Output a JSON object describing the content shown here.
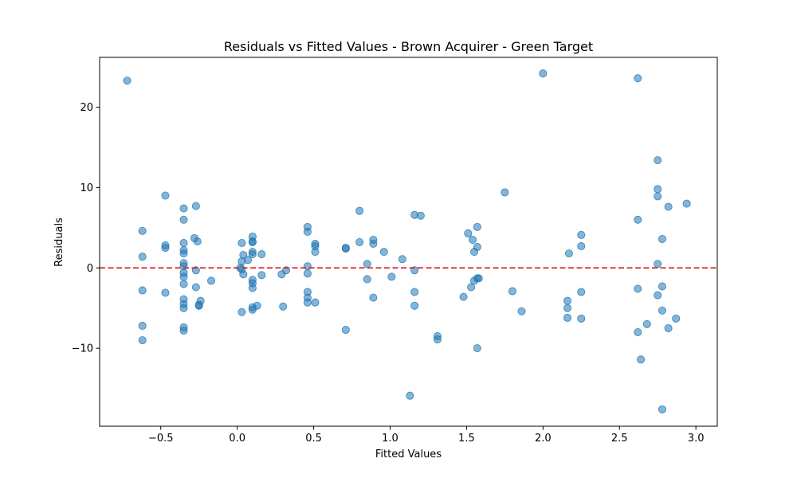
{
  "chart_data": {
    "type": "scatter",
    "title": "Residuals vs Fitted Values - Brown Acquirer - Green Target",
    "xlabel": "Fitted Values",
    "ylabel": "Residuals",
    "xlim": [
      -0.9,
      3.14
    ],
    "ylim": [
      -19.7,
      26.2
    ],
    "xticks": [
      -0.5,
      0.0,
      0.5,
      1.0,
      1.5,
      2.0,
      2.5,
      3.0
    ],
    "xtick_labels": [
      "−0.5",
      "0.0",
      "0.5",
      "1.0",
      "1.5",
      "2.0",
      "2.5",
      "3.0"
    ],
    "yticks": [
      -10,
      0,
      10,
      20
    ],
    "ytick_labels": [
      "−10",
      "0",
      "10",
      "20"
    ],
    "grid": false,
    "marker_color": "#1f77b4",
    "marker_alpha": 0.55,
    "reference_line": {
      "y": 0,
      "color": "#d62728",
      "style": "dashed"
    },
    "points": [
      [
        -0.72,
        23.3
      ],
      [
        -0.62,
        4.6
      ],
      [
        -0.62,
        1.4
      ],
      [
        -0.62,
        -2.8
      ],
      [
        -0.62,
        -7.2
      ],
      [
        -0.62,
        -9.0
      ],
      [
        -0.47,
        9.0
      ],
      [
        -0.47,
        2.8
      ],
      [
        -0.47,
        2.5
      ],
      [
        -0.47,
        -3.1
      ],
      [
        -0.35,
        7.4
      ],
      [
        -0.35,
        6.0
      ],
      [
        -0.35,
        3.1
      ],
      [
        -0.35,
        2.2
      ],
      [
        -0.35,
        1.8
      ],
      [
        -0.35,
        0.6
      ],
      [
        -0.35,
        0.2
      ],
      [
        -0.35,
        -0.6
      ],
      [
        -0.35,
        -1.1
      ],
      [
        -0.35,
        -2.0
      ],
      [
        -0.35,
        -3.9
      ],
      [
        -0.35,
        -4.5
      ],
      [
        -0.35,
        -5.0
      ],
      [
        -0.35,
        -7.4
      ],
      [
        -0.35,
        -7.8
      ],
      [
        -0.28,
        3.7
      ],
      [
        -0.26,
        3.3
      ],
      [
        -0.27,
        7.7
      ],
      [
        -0.27,
        -0.3
      ],
      [
        -0.27,
        -2.4
      ],
      [
        -0.25,
        -4.7
      ],
      [
        -0.24,
        -4.1
      ],
      [
        -0.25,
        -4.6
      ],
      [
        -0.17,
        -1.6
      ],
      [
        0.03,
        3.1
      ],
      [
        0.04,
        1.6
      ],
      [
        0.03,
        0.8
      ],
      [
        0.02,
        0.0
      ],
      [
        0.03,
        -0.2
      ],
      [
        0.04,
        -0.8
      ],
      [
        0.03,
        -5.5
      ],
      [
        0.07,
        1.0
      ],
      [
        0.1,
        3.9
      ],
      [
        0.1,
        3.3
      ],
      [
        0.1,
        3.2
      ],
      [
        0.1,
        2.0
      ],
      [
        0.1,
        1.7
      ],
      [
        0.1,
        -1.5
      ],
      [
        0.1,
        -1.9
      ],
      [
        0.1,
        -2.5
      ],
      [
        0.1,
        -4.9
      ],
      [
        0.1,
        -5.2
      ],
      [
        0.13,
        -4.7
      ],
      [
        0.16,
        1.7
      ],
      [
        0.16,
        -0.9
      ],
      [
        0.29,
        -0.8
      ],
      [
        0.3,
        -4.8
      ],
      [
        0.32,
        -0.3
      ],
      [
        0.46,
        5.1
      ],
      [
        0.46,
        4.5
      ],
      [
        0.46,
        0.2
      ],
      [
        0.46,
        -0.7
      ],
      [
        0.46,
        -3.0
      ],
      [
        0.46,
        -3.7
      ],
      [
        0.46,
        -4.3
      ],
      [
        0.51,
        3.0
      ],
      [
        0.51,
        2.7
      ],
      [
        0.51,
        2.0
      ],
      [
        0.51,
        -4.3
      ],
      [
        0.71,
        2.5
      ],
      [
        0.71,
        2.4
      ],
      [
        0.71,
        -7.7
      ],
      [
        0.8,
        7.1
      ],
      [
        0.8,
        3.2
      ],
      [
        0.85,
        0.5
      ],
      [
        0.85,
        -1.4
      ],
      [
        0.89,
        3.5
      ],
      [
        0.89,
        3.0
      ],
      [
        0.89,
        -3.7
      ],
      [
        0.96,
        2.0
      ],
      [
        1.01,
        -1.1
      ],
      [
        1.08,
        1.1
      ],
      [
        1.13,
        -15.9
      ],
      [
        1.16,
        6.6
      ],
      [
        1.2,
        6.5
      ],
      [
        1.16,
        -0.3
      ],
      [
        1.16,
        -3.0
      ],
      [
        1.16,
        -4.7
      ],
      [
        1.31,
        -8.5
      ],
      [
        1.31,
        -8.9
      ],
      [
        1.48,
        -3.6
      ],
      [
        1.51,
        4.3
      ],
      [
        1.53,
        -2.4
      ],
      [
        1.54,
        3.5
      ],
      [
        1.55,
        2.0
      ],
      [
        1.55,
        -1.6
      ],
      [
        1.57,
        5.1
      ],
      [
        1.57,
        2.6
      ],
      [
        1.57,
        -1.3
      ],
      [
        1.58,
        -1.3
      ],
      [
        1.57,
        -10.0
      ],
      [
        1.75,
        9.4
      ],
      [
        1.8,
        -2.9
      ],
      [
        1.86,
        -5.4
      ],
      [
        2.0,
        24.2
      ],
      [
        2.16,
        -4.1
      ],
      [
        2.16,
        -5.0
      ],
      [
        2.16,
        -6.2
      ],
      [
        2.17,
        1.8
      ],
      [
        2.25,
        4.1
      ],
      [
        2.25,
        2.7
      ],
      [
        2.25,
        -3.0
      ],
      [
        2.25,
        -6.3
      ],
      [
        2.62,
        23.6
      ],
      [
        2.62,
        6.0
      ],
      [
        2.62,
        -2.6
      ],
      [
        2.62,
        -8.0
      ],
      [
        2.64,
        -11.4
      ],
      [
        2.68,
        -7.0
      ],
      [
        2.75,
        13.4
      ],
      [
        2.75,
        9.8
      ],
      [
        2.75,
        8.9
      ],
      [
        2.75,
        0.5
      ],
      [
        2.75,
        -3.4
      ],
      [
        2.78,
        3.6
      ],
      [
        2.78,
        -2.3
      ],
      [
        2.78,
        -5.3
      ],
      [
        2.78,
        -17.6
      ],
      [
        2.82,
        7.6
      ],
      [
        2.82,
        -7.5
      ],
      [
        2.87,
        -6.3
      ],
      [
        2.94,
        8.0
      ]
    ]
  }
}
